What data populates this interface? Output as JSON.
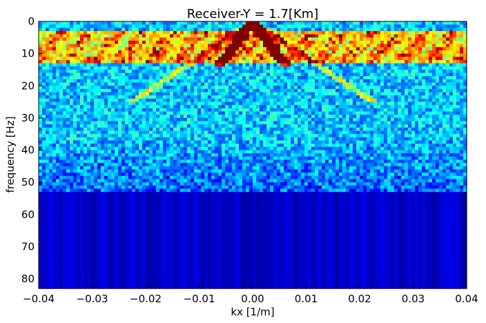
{
  "chart_data": {
    "type": "heatmap",
    "title": "Receiver-Y = 1.7[Km]",
    "xlabel": "kx [1/m]",
    "ylabel": "frequency [Hz]",
    "xlim": [
      -0.04,
      0.04
    ],
    "ylim": [
      0,
      83
    ],
    "y_inverted": true,
    "x_ticks": [
      -0.04,
      -0.03,
      -0.02,
      -0.01,
      0.0,
      0.01,
      0.02,
      0.03,
      0.04
    ],
    "x_tick_labels": [
      "−0.04",
      "−0.03",
      "−0.02",
      "−0.01",
      "0.00",
      "0.01",
      "0.02",
      "0.03",
      "0.04"
    ],
    "y_ticks": [
      0,
      10,
      20,
      30,
      40,
      50,
      60,
      70,
      80
    ],
    "y_tick_labels": [
      "0",
      "10",
      "20",
      "30",
      "40",
      "50",
      "60",
      "70",
      "80"
    ],
    "colormap": "jet",
    "colors": {
      "low": "#00007f",
      "mid": "#00ffff",
      "high": "#ff0000"
    },
    "grid": false,
    "features": [
      {
        "name": "strong-low-frequency-band",
        "y_range": [
          3,
          13
        ],
        "intensity": "cyan-yellow patches"
      },
      {
        "name": "v-shaped-dispersion-arms",
        "x_center": 0.0,
        "y_apex": 2,
        "intensity": "red near apex"
      },
      {
        "name": "noise-floor-cutoff",
        "y_start": 53,
        "intensity": "dark blue"
      }
    ]
  }
}
